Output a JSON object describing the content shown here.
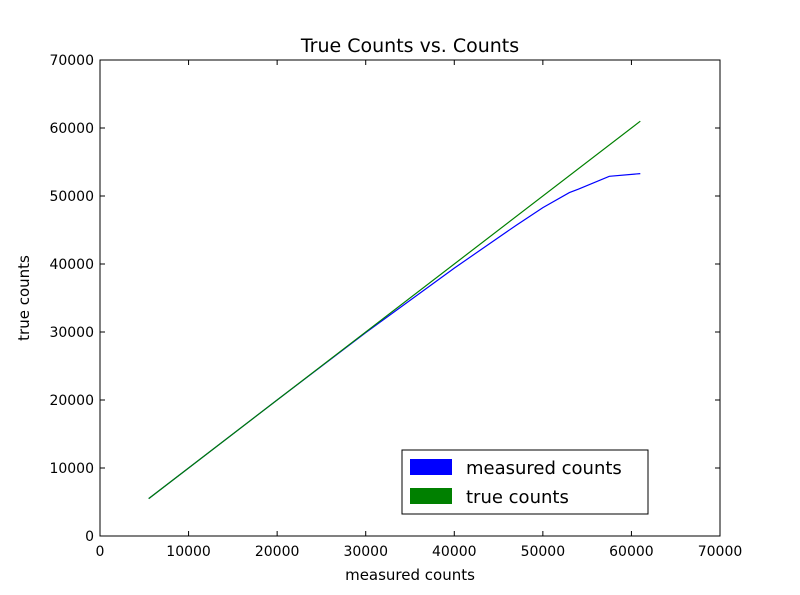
{
  "chart_data": {
    "type": "line",
    "title": "True Counts vs. Counts",
    "xlabel": "measured counts",
    "ylabel": "true counts",
    "xlim": [
      0,
      70000
    ],
    "ylim": [
      0,
      70000
    ],
    "xticks": [
      0,
      10000,
      20000,
      30000,
      40000,
      50000,
      60000,
      70000
    ],
    "yticks": [
      0,
      10000,
      20000,
      30000,
      40000,
      50000,
      60000,
      70000
    ],
    "grid": false,
    "legend_position": "lower-right",
    "series": [
      {
        "name": "measured counts",
        "color": "#0000ff",
        "x": [
          5500,
          10000,
          20000,
          30000,
          40000,
          47000,
          50000,
          53000,
          54000,
          57500,
          61000
        ],
        "y": [
          5500,
          10000,
          20000,
          29900,
          39400,
          45700,
          48300,
          50500,
          51000,
          52900,
          53300
        ]
      },
      {
        "name": "true counts",
        "color": "#008000",
        "x": [
          5500,
          61000
        ],
        "y": [
          5500,
          61000
        ]
      }
    ]
  }
}
